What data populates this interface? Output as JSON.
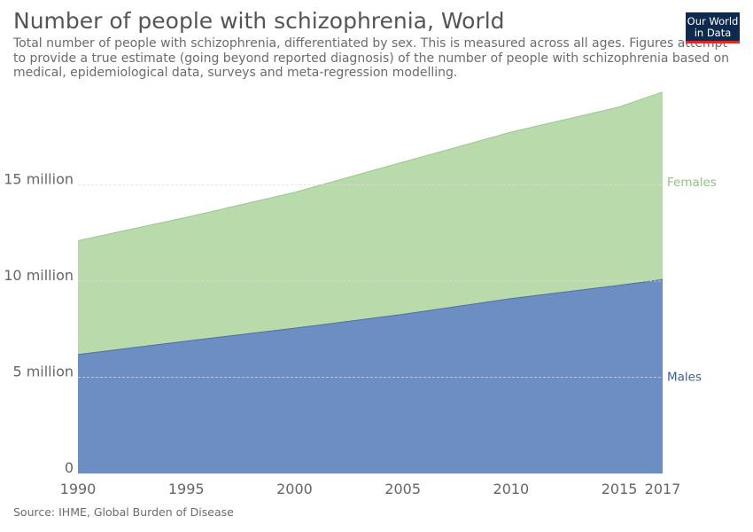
{
  "header": {
    "title": "Number of people with schizophrenia, World",
    "subtitle_lines": [
      "Total number of people with schizophrenia, differentiated by sex. This is measured across all ages. Figures attempt",
      "to provide a true estimate (going beyond reported diagnosis) of the number of people with schizophrenia based on",
      "medical, epidemiological data, surveys and meta-regression modelling."
    ]
  },
  "logo": {
    "line1": "Our World",
    "line2": "in Data"
  },
  "footer": {
    "source": "Source: IHME, Global Burden of Disease"
  },
  "colors": {
    "males": "#6d8ec3",
    "males_line": "#4f6fa6",
    "males_label": "#3e5f9c",
    "females": "#b9dbac",
    "females_line": "#9cc68e",
    "females_label": "#8fc480",
    "grid": "#dddddd"
  },
  "chart_data": {
    "type": "area",
    "stacked": true,
    "title": "Number of people with schizophrenia, World",
    "x": [
      1990,
      1995,
      2000,
      2005,
      2010,
      2015,
      2017
    ],
    "series": [
      {
        "name": "Males",
        "values": [
          6180000,
          6880000,
          7550000,
          8270000,
          9090000,
          9780000,
          10080000
        ]
      },
      {
        "name": "Females",
        "values": [
          5920000,
          6430000,
          7060000,
          7910000,
          8650000,
          9270000,
          9750000
        ]
      }
    ],
    "x_ticks": [
      1990,
      1995,
      2000,
      2005,
      2010,
      2015,
      2017
    ],
    "x_tick_labels": [
      "1990",
      "1995",
      "2000",
      "2005",
      "2010",
      "2015",
      "2017"
    ],
    "y_ticks": [
      0,
      5000000,
      10000000,
      15000000
    ],
    "y_tick_labels": [
      "0",
      "5 million",
      "10 million",
      "15 million"
    ],
    "xlim": [
      1990,
      2017
    ],
    "ylim": [
      0,
      20000000
    ],
    "grid": "horizontal dashed",
    "legend": "labels at right end of series"
  }
}
